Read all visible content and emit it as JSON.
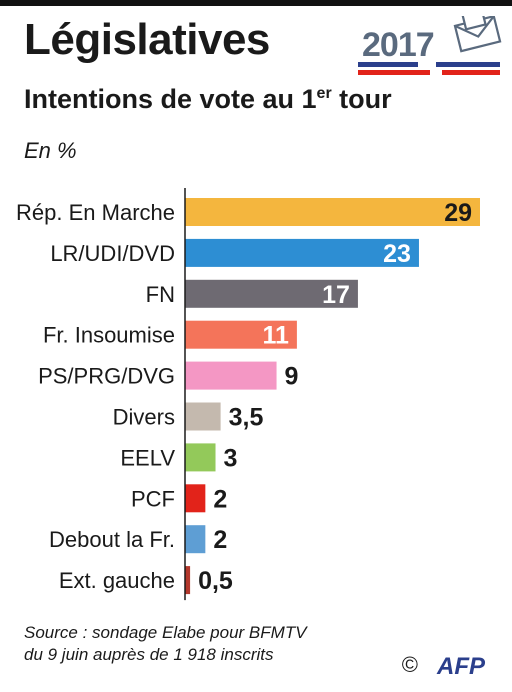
{
  "header": {
    "title": "Législatives",
    "subtitle_main": "Intentions de vote au 1",
    "subtitle_sup": "er",
    "subtitle_end": " tour",
    "unit": "En %"
  },
  "logo": {
    "year": "2017",
    "colors": {
      "year": "#5a6a7e",
      "blue": "#2b3f8c",
      "red": "#e2231a"
    }
  },
  "chart_data": {
    "type": "bar",
    "orientation": "horizontal",
    "categories": [
      "Rép. En Marche",
      "LR/UDI/DVD",
      "FN",
      "Fr. Insoumise",
      "PS/PRG/DVG",
      "Divers",
      "EELV",
      "PCF",
      "Debout la Fr.",
      "Ext. gauche"
    ],
    "values": [
      29,
      23,
      17,
      11,
      9,
      3.5,
      3,
      2,
      2,
      0.5
    ],
    "value_labels": [
      "29",
      "23",
      "17",
      "11",
      "9",
      "3,5",
      "3",
      "2",
      "2",
      "0,5"
    ],
    "colors": [
      "#f4b63e",
      "#2d8ed3",
      "#6e6a72",
      "#f4745a",
      "#f497c4",
      "#c4b9ae",
      "#93c95a",
      "#e2231a",
      "#5e9ed4",
      "#b3382c"
    ],
    "label_inside": [
      true,
      true,
      true,
      true,
      false,
      false,
      false,
      false,
      false,
      false
    ],
    "inside_label_colors": [
      "#1a1a1a",
      "#ffffff",
      "#ffffff",
      "#ffffff"
    ],
    "xlim": [
      0,
      29
    ],
    "grid": false,
    "legend": "none"
  },
  "footer": {
    "source_line1": "Source : sondage Elabe pour BFMTV",
    "source_line2": "du 9 juin auprès de 1 918 inscrits",
    "copyright": "©",
    "agency": "AFP"
  }
}
